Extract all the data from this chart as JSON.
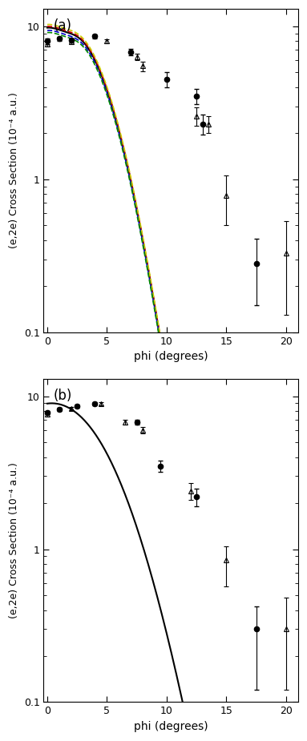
{
  "panel_a": {
    "label": "(a)",
    "ylim": [
      0.1,
      13
    ],
    "xlabel": "phi (degrees)",
    "ylabel": "(e,2e) Cross Section (10⁻⁴ a.u.)",
    "filled_circles": {
      "x": [
        0.0,
        1.0,
        2.0,
        4.0,
        7.0,
        10.0,
        12.5,
        13.0,
        17.5
      ],
      "y": [
        8.0,
        8.3,
        8.1,
        8.6,
        6.8,
        4.5,
        3.5,
        2.3,
        0.28
      ],
      "yerr_lo": [
        0.3,
        0.25,
        0.25,
        0.3,
        0.35,
        0.5,
        0.4,
        0.35,
        0.13
      ],
      "yerr_hi": [
        0.3,
        0.25,
        0.25,
        0.3,
        0.35,
        0.5,
        0.4,
        0.35,
        0.13
      ]
    },
    "open_triangles": {
      "x": [
        0.0,
        2.0,
        5.0,
        7.5,
        8.0,
        12.5,
        13.5,
        15.0,
        20.0
      ],
      "y": [
        7.7,
        7.9,
        8.0,
        6.3,
        5.5,
        2.6,
        2.3,
        0.78,
        0.33
      ],
      "yerr_lo": [
        0.3,
        0.25,
        0.25,
        0.3,
        0.4,
        0.35,
        0.3,
        0.28,
        0.2
      ],
      "yerr_hi": [
        0.3,
        0.25,
        0.25,
        0.3,
        0.4,
        0.35,
        0.3,
        0.28,
        0.2
      ]
    },
    "curve_colors": [
      "#000000",
      "#cc0000",
      "#0000cc",
      "#cccc00",
      "#008800"
    ],
    "curve_styles": [
      "-",
      "--",
      "--",
      "--",
      "--"
    ],
    "curve_lws": [
      1.5,
      1.2,
      1.2,
      1.2,
      1.2
    ],
    "curve_offsets": [
      1.0,
      1.02,
      0.96,
      1.05,
      0.93
    ]
  },
  "panel_b": {
    "label": "(b)",
    "ylim": [
      0.1,
      13
    ],
    "xlabel": "phi (degrees)",
    "ylabel": "(e,2e) Cross Section (10⁻⁴ a.u.)",
    "filled_circles": {
      "x": [
        0.0,
        1.0,
        2.5,
        4.0,
        7.5,
        9.5,
        12.5,
        17.5
      ],
      "y": [
        7.8,
        8.2,
        8.6,
        8.9,
        6.8,
        3.5,
        2.2,
        0.3
      ],
      "yerr_lo": [
        0.2,
        0.2,
        0.2,
        0.2,
        0.25,
        0.3,
        0.3,
        0.18
      ],
      "yerr_hi": [
        0.2,
        0.2,
        0.2,
        0.2,
        0.25,
        0.3,
        0.3,
        0.12
      ]
    },
    "open_triangles": {
      "x": [
        0.0,
        2.0,
        4.5,
        6.5,
        8.0,
        12.0,
        15.0,
        20.0
      ],
      "y": [
        7.6,
        8.3,
        8.9,
        6.8,
        6.0,
        2.4,
        0.85,
        0.3
      ],
      "yerr_lo": [
        0.2,
        0.2,
        0.2,
        0.25,
        0.3,
        0.3,
        0.28,
        0.18
      ],
      "yerr_hi": [
        0.2,
        0.2,
        0.2,
        0.25,
        0.3,
        0.3,
        0.2,
        0.18
      ]
    },
    "curve_color": "#000000",
    "curve_style": "-",
    "curve_lw": 1.5
  },
  "figsize": [
    3.83,
    9.25
  ],
  "dpi": 100
}
